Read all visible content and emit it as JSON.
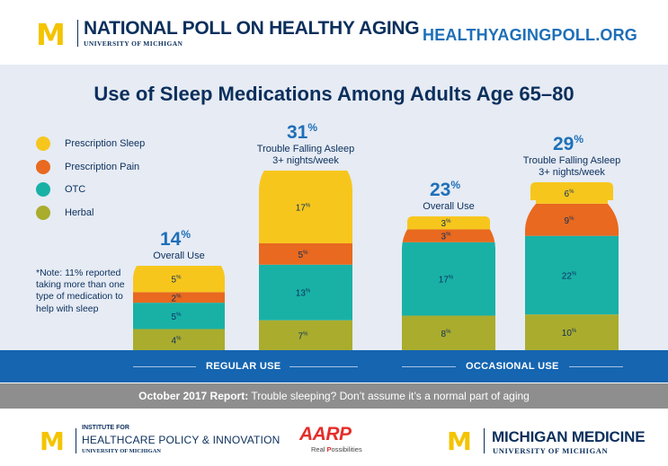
{
  "header": {
    "logo_letter": "M",
    "poll_name": "NATIONAL POLL ON HEALTHY AGING",
    "university": "UNIVERSITY OF MICHIGAN",
    "url": "HEALTHYAGINGPOLL.ORG"
  },
  "legend": [
    {
      "label": "Prescription Sleep",
      "color": "#f7c61d"
    },
    {
      "label": "Prescription Pain",
      "color": "#e8691f"
    },
    {
      "label": "OTC",
      "color": "#19b1a6"
    },
    {
      "label": "Herbal",
      "color": "#aaac2d"
    }
  ],
  "note": "*Note: 11% reported taking more than one type of medication to help with sleep",
  "chart_data": {
    "type": "bar",
    "title": "Use of Sleep Medications Among Adults Age 65–80",
    "groups": [
      "REGULAR USE",
      "OCCASIONAL USE"
    ],
    "bottles": [
      {
        "group": "REGULAR USE",
        "caption": "Overall Use",
        "total": 14,
        "segments": {
          "Herbal": 4,
          "OTC": 5,
          "Prescription Pain": 2,
          "Prescription Sleep": 5
        }
      },
      {
        "group": "REGULAR USE",
        "caption": "Trouble Falling Asleep 3+ nights/week",
        "caption_lines": [
          "Trouble Falling Asleep",
          "3+ nights/week"
        ],
        "total": 31,
        "segments": {
          "Herbal": 7,
          "OTC": 13,
          "Prescription Pain": 5,
          "Prescription Sleep": 17
        }
      },
      {
        "group": "OCCASIONAL USE",
        "caption": "Overall Use",
        "total": 23,
        "segments": {
          "Herbal": 8,
          "OTC": 17,
          "Prescription Pain": 3,
          "Prescription Sleep": 3
        }
      },
      {
        "group": "OCCASIONAL USE",
        "caption": "Trouble Falling Asleep 3+ nights/week",
        "caption_lines": [
          "Trouble Falling Asleep",
          "3+ nights/week"
        ],
        "total": 29,
        "segments": {
          "Herbal": 10,
          "OTC": 22,
          "Prescription Pain": 9,
          "Prescription Sleep": 6
        }
      }
    ],
    "stack_order": [
      "Herbal",
      "OTC",
      "Prescription Pain",
      "Prescription Sleep"
    ],
    "unit": "%"
  },
  "report": {
    "label": "October 2017 Report:",
    "text": "Trouble sleeping? Don’t assume it’s a normal part of aging"
  },
  "footer": {
    "ihpi_line1": "INSTITUTE FOR",
    "ihpi_line2": "HEALTHCARE POLICY & INNOVATION",
    "ihpi_line3": "UNIVERSITY OF MICHIGAN",
    "aarp": "AARP",
    "aarp_tagline_a": "Real ",
    "aarp_tagline_b": "P",
    "aarp_tagline_c": "ossibilities",
    "mm_title": "MICHIGAN MEDICINE",
    "mm_sub": "UNIVERSITY OF MICHIGAN"
  },
  "colors": {
    "navy": "#0b2f5c",
    "accent_blue": "#1d6fb8",
    "maize": "#f4c400",
    "band_blue": "#1565b0",
    "panel_bg": "#e6ebf4",
    "strip_gray": "#8d8e8d"
  }
}
